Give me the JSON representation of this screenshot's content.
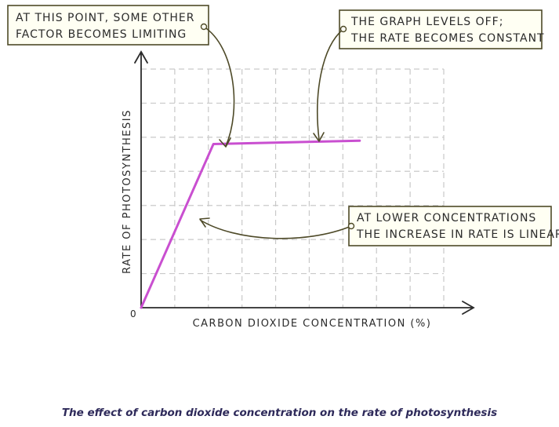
{
  "chart_data": {
    "type": "line",
    "title": "",
    "xlabel": "CARBON DIOXIDE CONCENTRATION (%)",
    "ylabel": "RATE OF PHOTOSYNTHESIS",
    "origin_label": "0",
    "xlim": [
      0,
      9
    ],
    "ylim": [
      0,
      7
    ],
    "grid": true,
    "series": [
      {
        "x": [
          0,
          2.15,
          6.5
        ],
        "y": [
          0,
          4.8,
          4.9
        ],
        "color": "#c94fd0"
      }
    ],
    "annotations": [
      {
        "lines": [
          "AT THIS POINT, SOME OTHER",
          "FACTOR BECOMES LIMITING"
        ]
      },
      {
        "lines": [
          "THE GRAPH LEVELS OFF;",
          "THE RATE BECOMES CONSTANT"
        ]
      },
      {
        "lines": [
          "AT LOWER CONCENTRATIONS",
          "THE INCREASE IN RATE IS LINEAR"
        ]
      }
    ]
  },
  "caption": "The effect of carbon dioxide concentration on the rate of photosynthesis"
}
